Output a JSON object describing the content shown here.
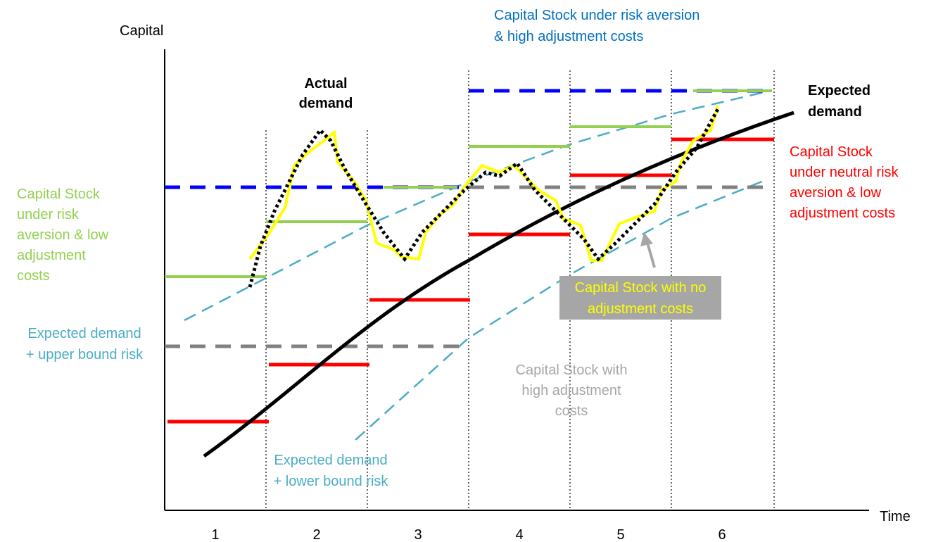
{
  "axes": {
    "y_label": "Capital",
    "x_label": "Time",
    "periods": [
      "1",
      "2",
      "3",
      "4",
      "5",
      "6"
    ]
  },
  "labels": {
    "actual_demand": [
      "Actual",
      "demand"
    ],
    "expected_demand": [
      "Expected",
      "demand"
    ],
    "risk_aversion_high": [
      "Capital Stock under risk aversion",
      "& high adjustment costs"
    ],
    "neutral_low": [
      "Capital Stock",
      "under neutral risk",
      "aversion & low",
      "adjustment costs"
    ],
    "risk_aversion_low": [
      "Capital Stock",
      "under risk",
      "aversion & low",
      "adjustment",
      "costs"
    ],
    "upper_bound": [
      "Expected demand",
      "+ upper bound risk"
    ],
    "lower_bound": [
      "Expected demand",
      "+ lower bound risk"
    ],
    "no_adjustment": [
      "Capital Stock with no",
      "adjustment costs"
    ],
    "high_adjustment": [
      "Capital Stock with",
      "high adjustment",
      "costs"
    ]
  }
}
